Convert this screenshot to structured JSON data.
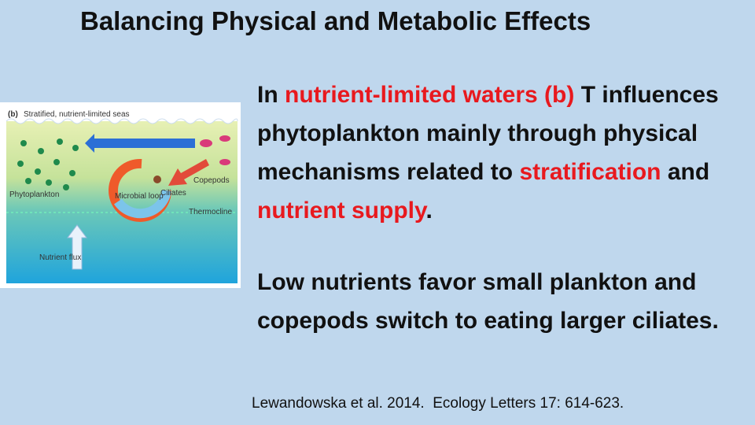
{
  "title": "Balancing Physical and Metabolic Effects",
  "figure": {
    "panel": "(b)",
    "heading": "Stratified, nutrient-limited seas",
    "labels": [
      "Phytoplankton",
      "Microbial loop",
      "Ciliates",
      "Copepods",
      "Thermocline",
      "Nutrient flux"
    ]
  },
  "paragraphs": [
    {
      "segments": [
        {
          "text": "In ",
          "emphasis": false
        },
        {
          "text": "nutrient-limited waters (b)",
          "emphasis": true
        },
        {
          "text": " T influences phytoplankton mainly through physical mechanisms related to ",
          "emphasis": false
        },
        {
          "text": "stratification",
          "emphasis": true
        },
        {
          "text": " and ",
          "emphasis": false
        },
        {
          "text": "nutrient supply",
          "emphasis": true
        },
        {
          "text": ".",
          "emphasis": false
        }
      ]
    },
    {
      "segments": [
        {
          "text": "Low nutrients favor small plankton and copepods switch to eating larger ciliates.",
          "emphasis": false
        }
      ]
    }
  ],
  "emphasis_color": "#e8191e",
  "citation": "Lewandowska et al. 2014.  Ecology Letters 17: 614-623."
}
